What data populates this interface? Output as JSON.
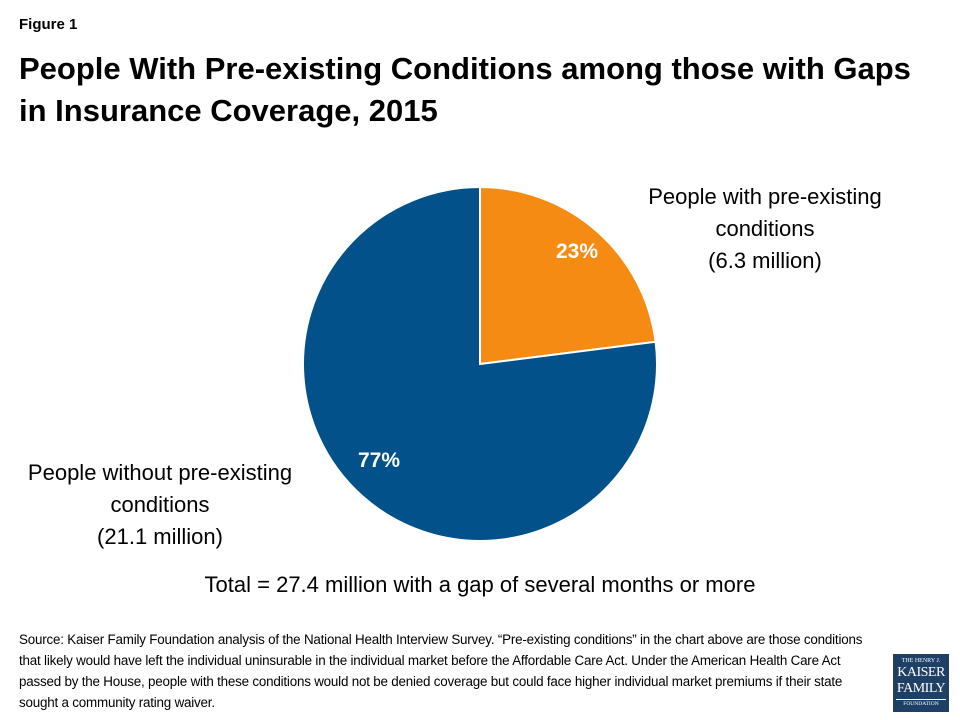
{
  "figure_label": "Figure 1",
  "title": "People With Pre-existing Conditions among those with Gaps in Insurance Coverage, 2015",
  "chart_data": {
    "type": "pie",
    "title": "People With Pre-existing Conditions among those with Gaps in Insurance Coverage, 2015",
    "slices": [
      {
        "label_lines": [
          "People with pre-existing",
          "conditions",
          "(6.3 million)"
        ],
        "value": 23,
        "data_label": "23%",
        "millions": 6.3,
        "color": "#F68B13"
      },
      {
        "label_lines": [
          "People without pre-existing",
          "conditions",
          "(21.1 million)"
        ],
        "value": 77,
        "data_label": "77%",
        "millions": 21.1,
        "color": "#03518A"
      }
    ],
    "start_angle": "12 o'clock",
    "direction": "clockwise"
  },
  "total_note": "Total = 27.4 million with a gap of several months or more",
  "source": "Source: Kaiser Family Foundation  analysis of the National Health Interview Survey. “Pre-existing conditions” in the chart above are those conditions that likely would have left the individual uninsurable in the individual market before the Affordable Care Act. Under the American Health Care Act passed by the House, people with these conditions would not be denied coverage but could face higher individual market premiums if their state sought a community rating waiver.",
  "logo": {
    "line1": "THE HENRY J.",
    "line2": "KAISER",
    "line3": "FAMILY",
    "line4": "FOUNDATION"
  }
}
